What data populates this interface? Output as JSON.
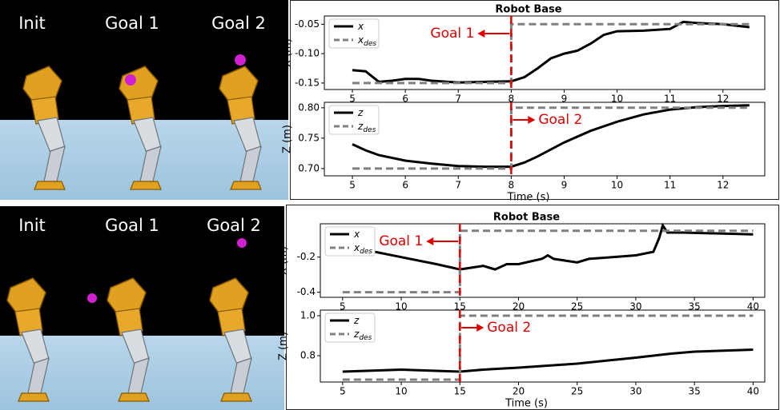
{
  "panels": [
    {
      "labels": [
        "Init",
        "Goal 1",
        "Goal 2"
      ]
    },
    {
      "labels": [
        "Init",
        "Goal 1",
        "Goal 2"
      ]
    }
  ],
  "chart_data": [
    {
      "type": "line",
      "title": "Robot Base",
      "ylabel": "X (m)",
      "xlim": [
        4.47,
        12.79
      ],
      "xticks": [
        5,
        6,
        7,
        8,
        9,
        10,
        11,
        12
      ],
      "ylim": [
        -0.161,
        -0.036
      ],
      "yticks": [
        -0.15,
        {
          "value": -0.1,
          "label": "-0.10"
        },
        -0.05
      ],
      "vline": 8,
      "annotation": "Goal 1",
      "annotation_side": "left",
      "series": [
        {
          "name": "x",
          "color": "#000000",
          "dash": false,
          "x": [
            5,
            5.25,
            5.5,
            5.75,
            6,
            6.25,
            6.5,
            7,
            7.5,
            8,
            8.25,
            8.5,
            8.75,
            9,
            9.25,
            9.5,
            9.75,
            10,
            10.5,
            11,
            11.25,
            11.5,
            12,
            12.5
          ],
          "values": [
            -0.128,
            -0.13,
            -0.148,
            -0.146,
            -0.143,
            -0.143,
            -0.146,
            -0.149,
            -0.148,
            -0.147,
            -0.14,
            -0.125,
            -0.108,
            -0.1,
            -0.095,
            -0.083,
            -0.068,
            -0.062,
            -0.061,
            -0.058,
            -0.046,
            -0.048,
            -0.05,
            -0.055
          ]
        },
        {
          "name": "x_des",
          "color": "#808080",
          "dash": true,
          "x": [
            5,
            8,
            8,
            12.5
          ],
          "values": [
            -0.15,
            -0.15,
            -0.05,
            -0.05
          ]
        }
      ]
    },
    {
      "type": "line",
      "ylabel": "Z (m)",
      "xlabel": "Time (s)",
      "xlim": [
        4.47,
        12.79
      ],
      "xticks": [
        5,
        6,
        7,
        8,
        9,
        10,
        11,
        12
      ],
      "ylim": [
        0.688,
        0.809
      ],
      "yticks": [
        {
          "value": 0.7,
          "label": "0.70"
        },
        0.75,
        {
          "value": 0.8,
          "label": "0.80"
        }
      ],
      "vline": 8,
      "annotation": "Goal 2",
      "annotation_side": "right",
      "series": [
        {
          "name": "z",
          "color": "#000000",
          "dash": false,
          "x": [
            5,
            5.25,
            5.5,
            6,
            6.5,
            7,
            7.5,
            8,
            8.25,
            8.5,
            9,
            9.5,
            10,
            10.5,
            11,
            11.5,
            12,
            12.5
          ],
          "values": [
            0.74,
            0.73,
            0.722,
            0.713,
            0.708,
            0.704,
            0.703,
            0.703,
            0.71,
            0.72,
            0.743,
            0.762,
            0.777,
            0.789,
            0.797,
            0.801,
            0.803,
            0.804
          ]
        },
        {
          "name": "z_des",
          "color": "#808080",
          "dash": true,
          "x": [
            5,
            8,
            8,
            12.5
          ],
          "values": [
            0.7,
            0.7,
            0.8,
            0.8
          ]
        }
      ]
    },
    {
      "type": "line",
      "title": "Robot Base",
      "ylabel": "X (m)",
      "xlim": [
        3.1,
        41
      ],
      "xticks": [
        5,
        10,
        15,
        20,
        25,
        30,
        35,
        40
      ],
      "ylim": [
        -0.429,
        -0.01
      ],
      "yticks": [
        -0.4,
        -0.2
      ],
      "vline": 15,
      "annotation": "Goal 1",
      "annotation_side": "left",
      "series": [
        {
          "name": "x",
          "color": "#000000",
          "dash": false,
          "x": [
            5,
            7,
            10,
            13,
            15,
            16,
            17,
            18,
            19,
            20,
            22,
            22.5,
            23,
            25,
            26,
            28,
            30,
            31.5,
            32,
            32.3,
            32.7,
            34,
            40
          ],
          "values": [
            -0.14,
            -0.16,
            -0.2,
            -0.24,
            -0.27,
            -0.26,
            -0.25,
            -0.27,
            -0.24,
            -0.24,
            -0.21,
            -0.19,
            -0.21,
            -0.23,
            -0.21,
            -0.2,
            -0.19,
            -0.17,
            -0.09,
            -0.02,
            -0.06,
            -0.06,
            -0.07
          ]
        },
        {
          "name": "x_des",
          "color": "#808080",
          "dash": true,
          "x": [
            5,
            15,
            15,
            40
          ],
          "values": [
            -0.4,
            -0.4,
            -0.05,
            -0.05
          ]
        }
      ]
    },
    {
      "type": "line",
      "ylabel": "Z (m)",
      "xlabel": "Time (s)",
      "xlim": [
        3.1,
        41
      ],
      "xticks": [
        5,
        10,
        15,
        20,
        25,
        30,
        35,
        40
      ],
      "ylim": [
        0.668,
        1.028
      ],
      "yticks": [
        0.8,
        {
          "value": 1.0,
          "label": "1.0"
        }
      ],
      "vline": 15,
      "annotation": "Goal 2",
      "annotation_side": "right",
      "series": [
        {
          "name": "z",
          "color": "#000000",
          "dash": false,
          "x": [
            5,
            10,
            15,
            17,
            20,
            25,
            30,
            33,
            35,
            40
          ],
          "values": [
            0.72,
            0.73,
            0.72,
            0.73,
            0.74,
            0.76,
            0.79,
            0.81,
            0.82,
            0.83
          ]
        },
        {
          "name": "z_des",
          "color": "#808080",
          "dash": true,
          "x": [
            5,
            15,
            15,
            40
          ],
          "values": [
            0.68,
            0.68,
            1.0,
            1.0
          ]
        }
      ]
    }
  ]
}
